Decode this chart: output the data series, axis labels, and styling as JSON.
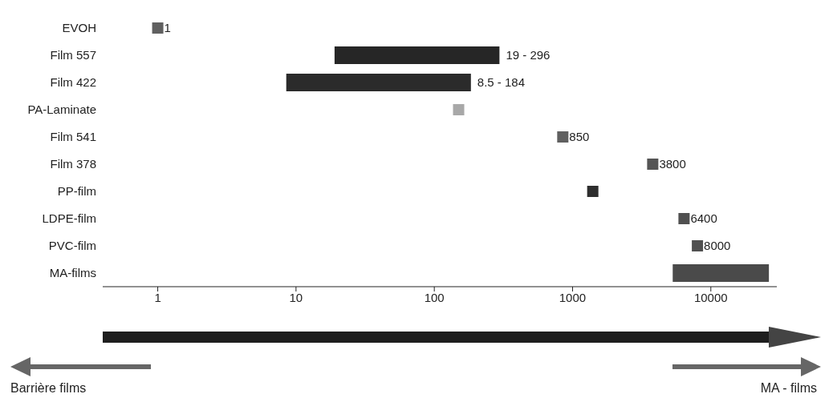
{
  "chart_data": {
    "type": "bar",
    "orientation": "horizontal",
    "log": "x",
    "categories": [
      "EVOH",
      "Film 557",
      "Film 422",
      "PA-Laminate",
      "Film 541",
      "Film 378",
      "PP-film",
      "LDPE-film",
      "PVC-film",
      "MA-films"
    ],
    "series": [
      {
        "base": [
          null,
          19,
          8.5,
          null,
          null,
          null,
          null,
          null,
          null,
          5300
        ],
        "values": [
          null,
          277,
          175.5,
          null,
          null,
          null,
          null,
          null,
          null,
          21000
        ],
        "colors": [
          null,
          "#262626",
          "#2b2b2b",
          null,
          null,
          null,
          null,
          null,
          null,
          "#4a4a4a"
        ]
      },
      {
        "type": "scatter",
        "marker": "square",
        "values": [
          1,
          null,
          null,
          150,
          850,
          3800,
          1400,
          6400,
          8000,
          null
        ],
        "value_labels": [
          "1",
          null,
          null,
          null,
          "850",
          "3800",
          null,
          "6400",
          "8000",
          null
        ],
        "colors": [
          "#606060",
          null,
          null,
          "#a8a8a8",
          "#606060",
          "#555555",
          "#2e2e2e",
          "#505050",
          "#505050",
          null
        ]
      }
    ],
    "xlim": [
      0.4,
      30000
    ],
    "xticks": [
      1,
      10,
      100,
      1000,
      10000
    ],
    "grid": false,
    "legend": false,
    "annotations": [
      {
        "text": "19 - 296",
        "x": 296,
        "y": "Film 557"
      },
      {
        "text": "8.5 - 184",
        "x": 184,
        "y": "Film 422"
      },
      "Barrière films",
      "MA - films"
    ]
  }
}
